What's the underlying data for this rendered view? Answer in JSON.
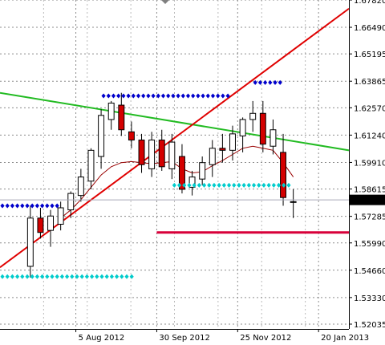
{
  "chart_data": {
    "type": "candlestick",
    "title": "",
    "xlabel": "",
    "ylabel": "",
    "grid": true,
    "ylim": [
      1.518,
      1.6782
    ],
    "xlim": [
      -6,
      63
    ],
    "y_ticks": [
      "1.67820",
      "1.66490",
      "1.65195",
      "1.63865",
      "1.62570",
      "1.61240",
      "1.59910",
      "1.58615",
      "1.57285",
      "1.55990",
      "1.54660",
      "1.53330",
      "1.52035"
    ],
    "x_ticks": [
      {
        "label": "5 Aug 2012",
        "x": 9
      },
      {
        "label": "30 Sep 2012",
        "x": 25
      },
      {
        "label": "25 Nov 2012",
        "x": 41
      },
      {
        "label": "20 Jan 2013",
        "x": 57
      }
    ],
    "current_price": "1.58085",
    "colors": {
      "bull": "#ffffff",
      "bear": "#d40000",
      "wick": "#000000",
      "moving_average": "#990000",
      "resistance_line": "#22bb22",
      "support_line": "#e00000",
      "horizontal_level": "#d8003a",
      "dots_high": "#0000cc",
      "dots_low": "#00cccc",
      "price_line": "#a8a8b8",
      "grid": "#8c8c8c"
    },
    "candles": [
      {
        "x": 0,
        "o": 1.5485,
        "h": 1.578,
        "l": 1.543,
        "c": 1.572
      },
      {
        "x": 2,
        "o": 1.572,
        "h": 1.577,
        "l": 1.562,
        "c": 1.565
      },
      {
        "x": 4,
        "o": 1.566,
        "h": 1.576,
        "l": 1.558,
        "c": 1.573
      },
      {
        "x": 6,
        "o": 1.569,
        "h": 1.58,
        "l": 1.566,
        "c": 1.577
      },
      {
        "x": 8,
        "o": 1.576,
        "h": 1.585,
        "l": 1.572,
        "c": 1.584
      },
      {
        "x": 10,
        "o": 1.583,
        "h": 1.596,
        "l": 1.58,
        "c": 1.592
      },
      {
        "x": 12,
        "o": 1.59,
        "h": 1.606,
        "l": 1.586,
        "c": 1.605
      },
      {
        "x": 14,
        "o": 1.602,
        "h": 1.625,
        "l": 1.596,
        "c": 1.622
      },
      {
        "x": 16,
        "o": 1.62,
        "h": 1.629,
        "l": 1.615,
        "c": 1.628
      },
      {
        "x": 18,
        "o": 1.627,
        "h": 1.633,
        "l": 1.612,
        "c": 1.615
      },
      {
        "x": 20,
        "o": 1.614,
        "h": 1.619,
        "l": 1.606,
        "c": 1.61
      },
      {
        "x": 22,
        "o": 1.61,
        "h": 1.613,
        "l": 1.594,
        "c": 1.598
      },
      {
        "x": 24,
        "o": 1.596,
        "h": 1.614,
        "l": 1.592,
        "c": 1.61
      },
      {
        "x": 26,
        "o": 1.61,
        "h": 1.615,
        "l": 1.595,
        "c": 1.597
      },
      {
        "x": 28,
        "o": 1.596,
        "h": 1.613,
        "l": 1.591,
        "c": 1.609
      },
      {
        "x": 30,
        "o": 1.602,
        "h": 1.608,
        "l": 1.584,
        "c": 1.586
      },
      {
        "x": 32,
        "o": 1.587,
        "h": 1.595,
        "l": 1.583,
        "c": 1.592
      },
      {
        "x": 34,
        "o": 1.591,
        "h": 1.602,
        "l": 1.588,
        "c": 1.599
      },
      {
        "x": 36,
        "o": 1.598,
        "h": 1.61,
        "l": 1.592,
        "c": 1.606
      },
      {
        "x": 38,
        "o": 1.606,
        "h": 1.613,
        "l": 1.599,
        "c": 1.605
      },
      {
        "x": 40,
        "o": 1.605,
        "h": 1.617,
        "l": 1.6,
        "c": 1.613
      },
      {
        "x": 42,
        "o": 1.612,
        "h": 1.621,
        "l": 1.604,
        "c": 1.62
      },
      {
        "x": 44,
        "o": 1.62,
        "h": 1.629,
        "l": 1.614,
        "c": 1.623
      },
      {
        "x": 46,
        "o": 1.623,
        "h": 1.629,
        "l": 1.604,
        "c": 1.608
      },
      {
        "x": 48,
        "o": 1.607,
        "h": 1.62,
        "l": 1.603,
        "c": 1.615
      },
      {
        "x": 50,
        "o": 1.604,
        "h": 1.613,
        "l": 1.578,
        "c": 1.582
      },
      {
        "x": 52,
        "o": 1.58,
        "h": 1.586,
        "l": 1.572,
        "c": 1.58
      }
    ],
    "moving_average": {
      "x": [
        6,
        8,
        10,
        12,
        14,
        16,
        18,
        20,
        22,
        24,
        26,
        28,
        30,
        32,
        34,
        36,
        38,
        40,
        42,
        44,
        46,
        48,
        50,
        52
      ],
      "y": [
        1.572,
        1.576,
        1.581,
        1.587,
        1.593,
        1.597,
        1.599,
        1.5995,
        1.599,
        1.5985,
        1.599,
        1.5995,
        1.596,
        1.594,
        1.5945,
        1.5975,
        1.6,
        1.603,
        1.606,
        1.607,
        1.606,
        1.605,
        1.599,
        1.592
      ]
    },
    "trendlines": [
      {
        "name": "",
        "kind": "resistance",
        "x": [
          -6,
          63
        ],
        "y": [
          1.633,
          1.605
        ]
      },
      {
        "name": "",
        "kind": "support",
        "x": [
          -6,
          63
        ],
        "y": [
          1.548,
          1.674
        ]
      }
    ],
    "horizontal_levels": [
      {
        "y": 1.565,
        "x_start": 25,
        "x_end": 63
      }
    ],
    "dot_rows": [
      {
        "kind": "high",
        "y": 1.578,
        "x_start": -6,
        "x_end": 6
      },
      {
        "kind": "high",
        "y": 1.6315,
        "x_start": 14,
        "x_end": 40
      },
      {
        "kind": "high",
        "y": 1.638,
        "x_start": 44,
        "x_end": 50
      },
      {
        "kind": "low",
        "y": 1.588,
        "x_start": 28,
        "x_end": 52
      },
      {
        "kind": "low",
        "y": 1.5435,
        "x_start": -6,
        "x_end": 21
      }
    ]
  }
}
